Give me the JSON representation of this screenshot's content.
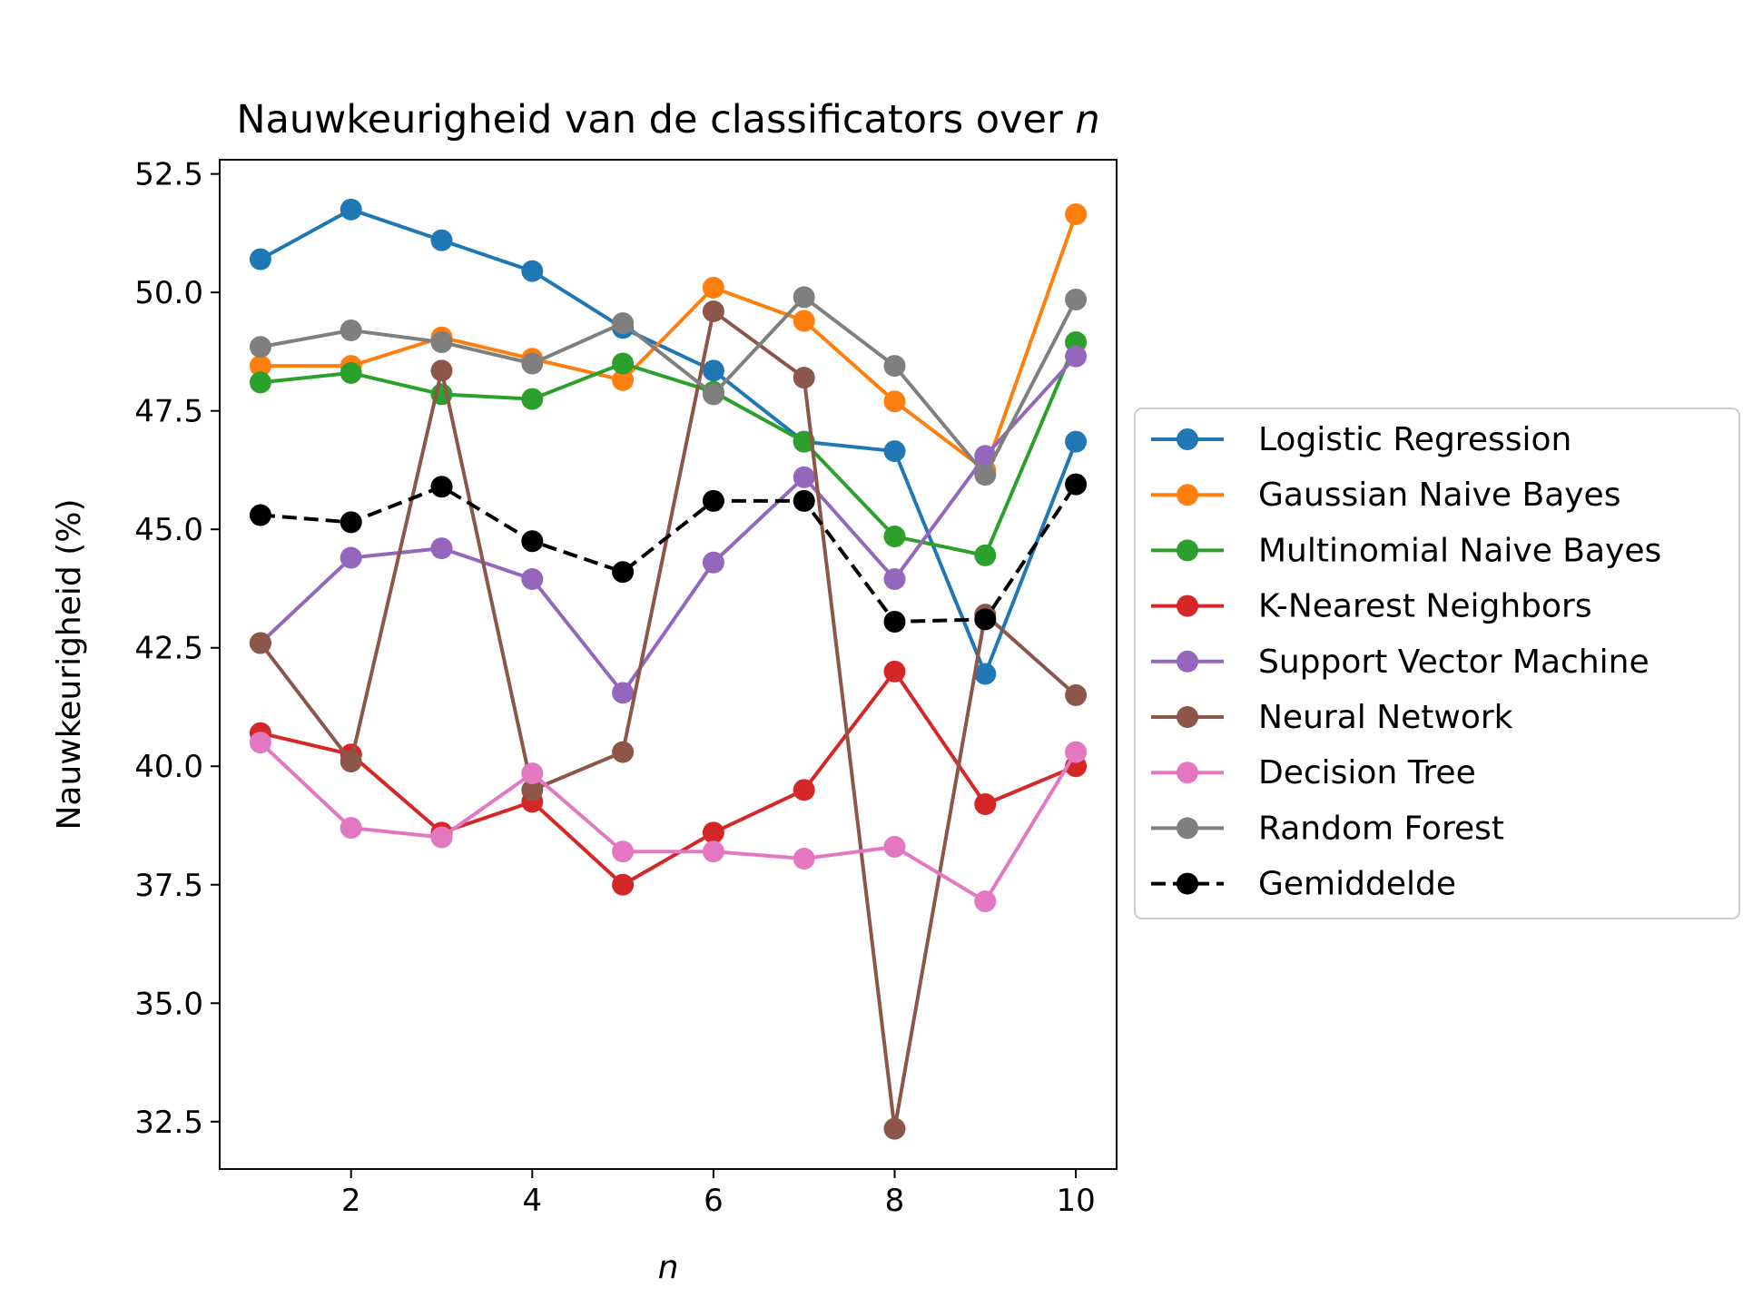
{
  "chart_data": {
    "type": "line",
    "title_prefix": "Nauwkeurigheid van de classificators over ",
    "title_var": "n",
    "xlabel": "n",
    "ylabel": "Nauwkeurigheid (%)",
    "xlim": [
      0.55,
      10.45
    ],
    "ylim": [
      31.5,
      52.8
    ],
    "x_ticks": [
      2,
      4,
      6,
      8,
      10
    ],
    "x_tick_labels": [
      "2",
      "4",
      "6",
      "8",
      "10"
    ],
    "y_ticks": [
      32.5,
      35.0,
      37.5,
      40.0,
      42.5,
      45.0,
      47.5,
      50.0,
      52.5
    ],
    "y_tick_labels": [
      "32.5",
      "35.0",
      "37.5",
      "40.0",
      "42.5",
      "45.0",
      "47.5",
      "50.0",
      "52.5"
    ],
    "grid": false,
    "legend_position": "outside-right",
    "x": [
      1,
      2,
      3,
      4,
      5,
      6,
      7,
      8,
      9,
      10
    ],
    "series": [
      {
        "name": "Logistic Regression",
        "color": "#1f77b4",
        "style": "solid",
        "values": [
          50.7,
          51.75,
          51.1,
          50.45,
          49.25,
          48.35,
          46.85,
          46.65,
          41.95,
          46.85
        ]
      },
      {
        "name": "Gaussian Naive Bayes",
        "color": "#ff7f0e",
        "style": "solid",
        "values": [
          48.45,
          48.45,
          49.05,
          48.6,
          48.15,
          50.1,
          49.4,
          47.7,
          46.25,
          51.65
        ]
      },
      {
        "name": "Multinomial Naive Bayes",
        "color": "#2ca02c",
        "style": "solid",
        "values": [
          48.1,
          48.3,
          47.85,
          47.75,
          48.5,
          47.9,
          46.85,
          44.85,
          44.45,
          48.95
        ]
      },
      {
        "name": "K-Nearest Neighbors",
        "color": "#d62728",
        "style": "solid",
        "values": [
          40.7,
          40.25,
          38.6,
          39.25,
          37.5,
          38.6,
          39.5,
          42.0,
          39.2,
          40.0
        ]
      },
      {
        "name": "Support Vector Machine",
        "color": "#9467bd",
        "style": "solid",
        "values": [
          42.6,
          44.4,
          44.6,
          43.95,
          41.55,
          44.3,
          46.1,
          43.95,
          46.55,
          48.65
        ]
      },
      {
        "name": "Neural Network",
        "color": "#8c564b",
        "style": "solid",
        "values": [
          42.6,
          40.1,
          48.35,
          39.5,
          40.3,
          49.6,
          48.2,
          32.35,
          43.2,
          41.5
        ]
      },
      {
        "name": "Decision Tree",
        "color": "#e377c2",
        "style": "solid",
        "values": [
          40.5,
          38.7,
          38.5,
          39.85,
          38.2,
          38.2,
          38.05,
          38.3,
          37.15,
          40.3
        ]
      },
      {
        "name": "Random Forest",
        "color": "#7f7f7f",
        "style": "solid",
        "values": [
          48.85,
          49.2,
          48.95,
          48.5,
          49.35,
          47.85,
          49.9,
          48.45,
          46.15,
          49.85
        ]
      },
      {
        "name": "Gemiddelde",
        "color": "#000000",
        "style": "dashed",
        "values": [
          45.3,
          45.15,
          45.9,
          44.75,
          44.1,
          45.6,
          45.6,
          43.05,
          43.1,
          45.95
        ]
      }
    ]
  }
}
